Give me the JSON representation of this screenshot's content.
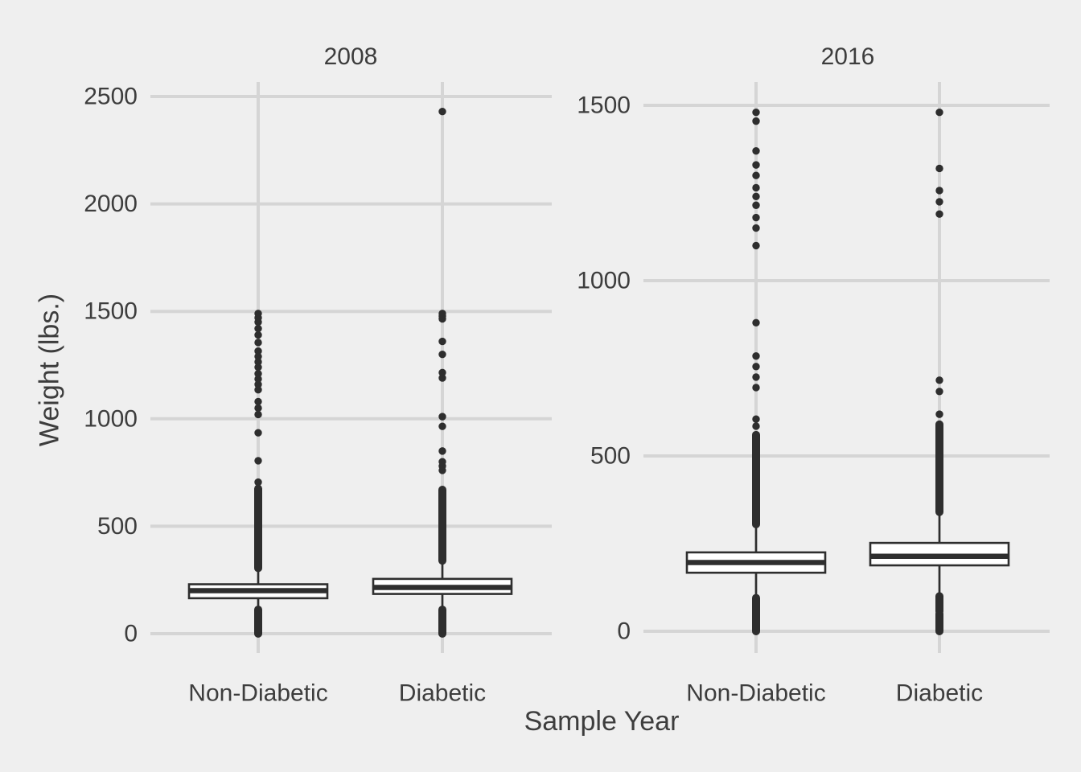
{
  "chart_data": {
    "type": "boxplot",
    "xlabel": "Sample Year",
    "ylabel": "Weight (lbs.)",
    "legend": "none",
    "grid": "on",
    "colors": {
      "background": "#EFEFEF",
      "gridline": "#D5D5D5",
      "box_fill": "#FFFFFF",
      "ink": "#2E2E2E",
      "text": "#3D3D3D"
    },
    "facets": [
      {
        "title": "2008",
        "ylim": [
          0,
          2500
        ],
        "yticks": [
          0,
          500,
          1000,
          1500,
          2000,
          2500
        ],
        "categories": [
          "Non-Diabetic",
          "Diabetic"
        ],
        "boxes": [
          {
            "category": "Non-Diabetic",
            "q1": 165,
            "median": 200,
            "q3": 230,
            "whisker_low": 115,
            "whisker_high": 300,
            "outliers_dense": [
              [
                0,
                112
              ],
              [
                305,
                675
              ]
            ],
            "outliers": [
              705,
              805,
              935,
              1020,
              1050,
              1080,
              1135,
              1160,
              1185,
              1210,
              1240,
              1265,
              1290,
              1315,
              1355,
              1390,
              1420,
              1450,
              1470,
              1490
            ]
          },
          {
            "category": "Diabetic",
            "q1": 185,
            "median": 215,
            "q3": 255,
            "whisker_low": 115,
            "whisker_high": 340,
            "outliers_dense": [
              [
                0,
                112
              ],
              [
                340,
                670
              ]
            ],
            "outliers": [
              760,
              780,
              800,
              850,
              965,
              1010,
              1190,
              1215,
              1300,
              1360,
              1465,
              1478,
              1490,
              2430
            ]
          }
        ]
      },
      {
        "title": "2016",
        "ylim": [
          0,
          1500
        ],
        "yticks": [
          0,
          500,
          1000,
          1500
        ],
        "categories": [
          "Non-Diabetic",
          "Diabetic"
        ],
        "boxes": [
          {
            "category": "Non-Diabetic",
            "q1": 167,
            "median": 196,
            "q3": 225,
            "whisker_low": 100,
            "whisker_high": 303,
            "outliers_dense": [
              [
                0,
                95
              ],
              [
                305,
                560
              ]
            ],
            "outliers": [
              585,
              605,
              695,
              725,
              755,
              785,
              880,
              1100,
              1150,
              1180,
              1215,
              1240,
              1265,
              1300,
              1330,
              1370,
              1455,
              1480
            ]
          },
          {
            "category": "Diabetic",
            "q1": 188,
            "median": 214,
            "q3": 252,
            "whisker_low": 103,
            "whisker_high": 337,
            "outliers_dense": [
              [
                0,
                50
              ],
              [
                57,
                100
              ],
              [
                340,
                590
              ]
            ],
            "outliers": [
              619,
              684,
              716,
              1190,
              1225,
              1257,
              1320,
              1480
            ]
          }
        ]
      }
    ]
  }
}
